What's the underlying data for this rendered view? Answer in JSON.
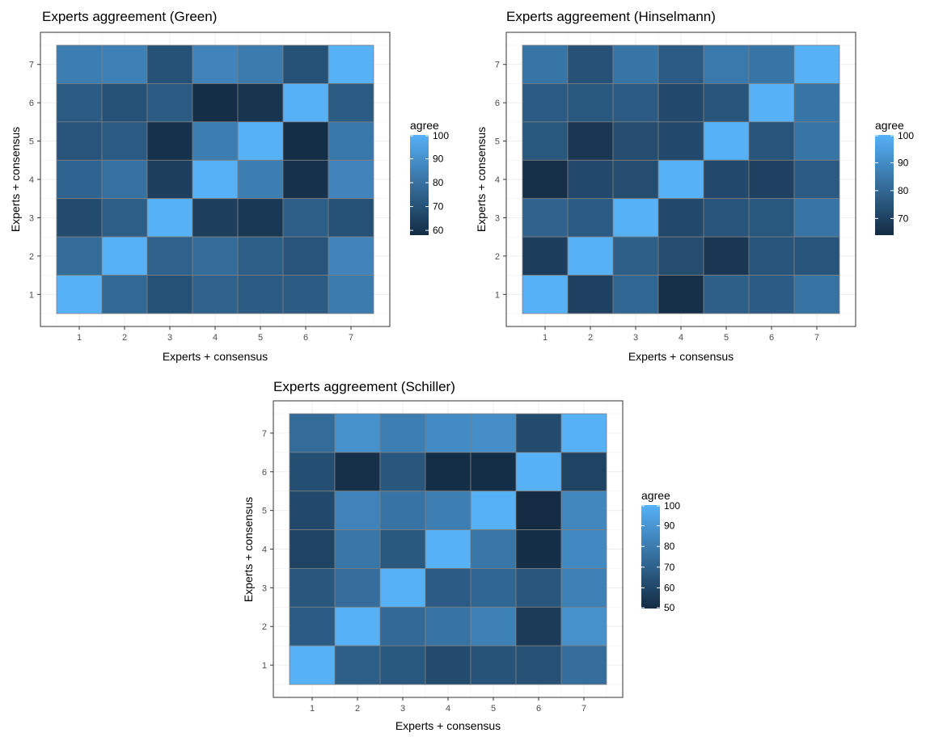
{
  "chart_data": [
    {
      "type": "heatmap",
      "title": "Experts aggreement (Green)",
      "xlabel": "Experts + consensus",
      "ylabel": "Experts + consensus",
      "x_categories": [
        "1",
        "2",
        "3",
        "4",
        "5",
        "6",
        "7"
      ],
      "y_categories": [
        "1",
        "2",
        "3",
        "4",
        "5",
        "6",
        "7"
      ],
      "values_rows_top_to_bottom": [
        [
          84,
          85,
          70,
          86,
          83,
          70,
          100
        ],
        [
          73,
          70,
          73,
          59,
          61,
          100,
          73
        ],
        [
          71,
          73,
          60,
          84,
          100,
          59,
          82
        ],
        [
          76,
          80,
          64,
          100,
          84,
          60,
          86
        ],
        [
          68,
          74,
          100,
          64,
          62,
          74,
          70
        ],
        [
          78,
          100,
          75,
          78,
          74,
          71,
          86
        ],
        [
          100,
          77,
          70,
          75,
          73,
          73,
          83
        ]
      ],
      "legend": {
        "title": "agree",
        "ticks": [
          100,
          90,
          80,
          70,
          60
        ],
        "range": [
          58,
          100
        ],
        "position": "right"
      },
      "color_scale": {
        "low": "#132B43",
        "high": "#56B1F7"
      },
      "grid": true
    },
    {
      "type": "heatmap",
      "title": "Experts aggreement (Hinselmann)",
      "xlabel": "Experts + consensus",
      "ylabel": "Experts + consensus",
      "x_categories": [
        "1",
        "2",
        "3",
        "4",
        "5",
        "6",
        "7"
      ],
      "y_categories": [
        "1",
        "2",
        "3",
        "4",
        "5",
        "6",
        "7"
      ],
      "values_rows_top_to_bottom": [
        [
          84,
          74,
          84,
          77,
          85,
          84,
          100
        ],
        [
          77,
          76,
          77,
          72,
          75,
          100,
          84
        ],
        [
          76,
          67,
          73,
          72,
          100,
          75,
          84
        ],
        [
          65,
          72,
          73,
          100,
          72,
          70,
          77
        ],
        [
          79,
          77,
          100,
          72,
          75,
          76,
          84
        ],
        [
          69,
          100,
          78,
          73,
          67,
          75,
          75
        ],
        [
          100,
          70,
          80,
          65,
          78,
          77,
          83
        ]
      ],
      "legend": {
        "title": "agree",
        "ticks": [
          100,
          90,
          80,
          70
        ],
        "range": [
          64,
          100
        ],
        "position": "right"
      },
      "color_scale": {
        "low": "#132B43",
        "high": "#56B1F7"
      },
      "grid": true
    },
    {
      "type": "heatmap",
      "title": "Experts aggreement (Schiller)",
      "xlabel": "Experts + consensus",
      "ylabel": "Experts + consensus",
      "x_categories": [
        "1",
        "2",
        "3",
        "4",
        "5",
        "6",
        "7"
      ],
      "y_categories": [
        "1",
        "2",
        "3",
        "4",
        "5",
        "6",
        "7"
      ],
      "values_rows_top_to_bottom": [
        [
          74,
          88,
          81,
          86,
          87,
          62,
          100
        ],
        [
          63,
          52,
          66,
          51,
          51,
          100,
          59
        ],
        [
          61,
          83,
          77,
          81,
          100,
          50,
          84
        ],
        [
          59,
          78,
          67,
          100,
          78,
          51,
          85
        ],
        [
          66,
          75,
          100,
          68,
          72,
          66,
          82
        ],
        [
          68,
          100,
          73,
          77,
          82,
          56,
          88
        ],
        [
          100,
          69,
          67,
          62,
          65,
          64,
          75
        ]
      ],
      "legend": {
        "title": "agree",
        "ticks": [
          100,
          90,
          80,
          70,
          60,
          50
        ],
        "range": [
          50,
          100
        ],
        "position": "right"
      },
      "color_scale": {
        "low": "#132B43",
        "high": "#56B1F7"
      },
      "grid": true
    }
  ]
}
